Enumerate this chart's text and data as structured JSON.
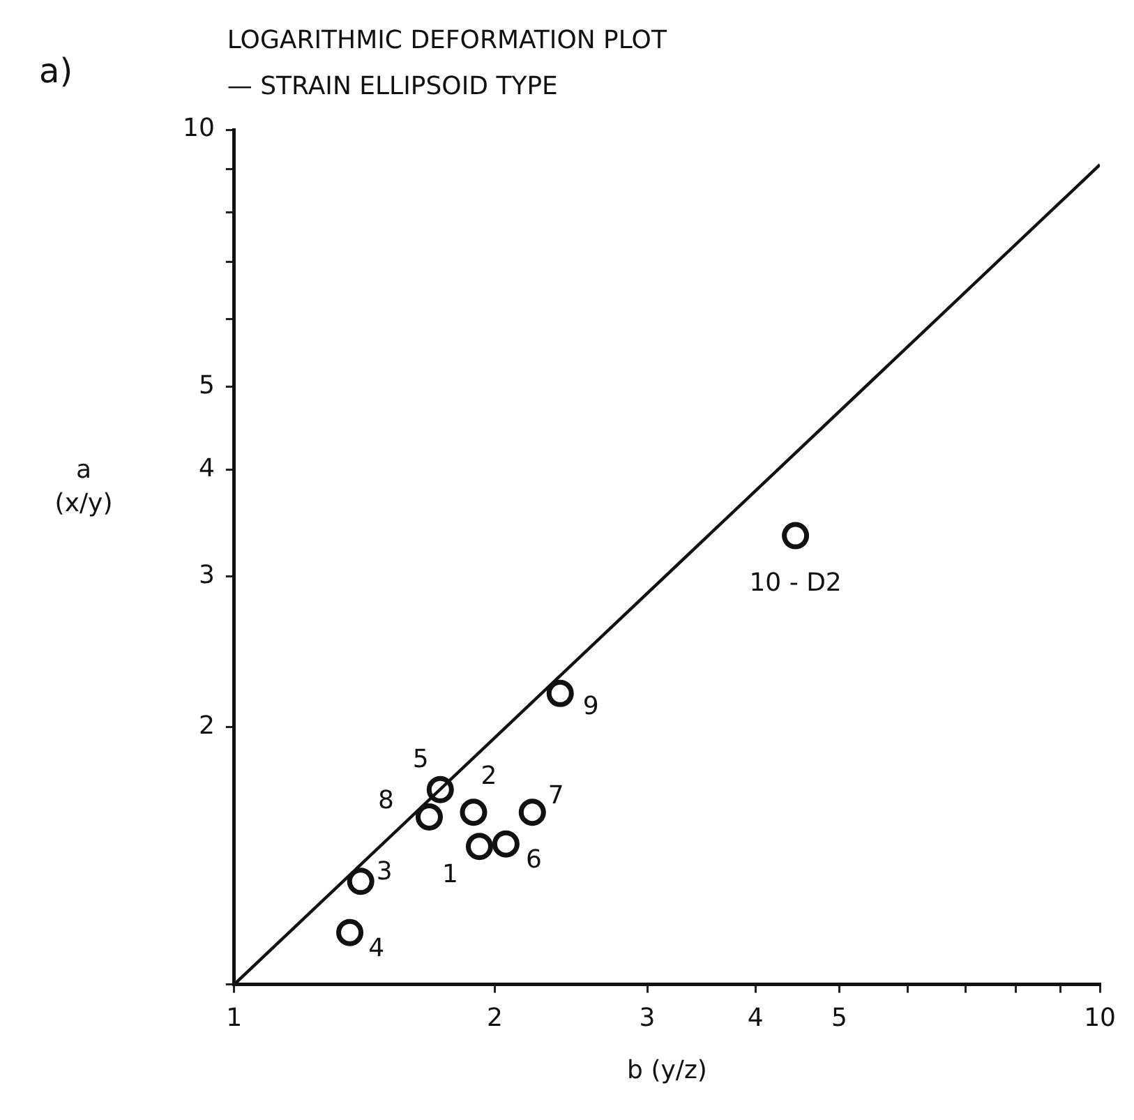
{
  "chart_data": {
    "type": "scatter",
    "title": "LOGARITHMIC DEFORMATION PLOT",
    "subtitle": "— STRAIN ELLIPSOID TYPE",
    "xlabel": "b (y/z)",
    "ylabel": "a (x/y)",
    "log": "xy",
    "grid": false,
    "legend": false,
    "xlim": [
      1,
      10
    ],
    "ylim": [
      1,
      10
    ],
    "xticks": [
      1,
      2,
      3,
      4,
      5,
      {
        "value": 6,
        "label": null
      },
      {
        "value": 7,
        "label": null
      },
      {
        "value": 8,
        "label": null
      },
      {
        "value": 9,
        "label": null
      },
      10
    ],
    "yticks": [
      {
        "value": 1,
        "label": null
      },
      2,
      3,
      4,
      5,
      {
        "value": 6,
        "label": null
      },
      {
        "value": 7,
        "label": null
      },
      {
        "value": 8,
        "label": null
      },
      {
        "value": 9,
        "label": null
      },
      10
    ],
    "series": [
      {
        "marker": "circle",
        "color": "#111111",
        "x": [
          1.92,
          1.89,
          1.4,
          1.36,
          1.73,
          2.06,
          2.21,
          1.68,
          2.38,
          4.45
        ],
        "values": [
          1.45,
          1.59,
          1.32,
          1.15,
          1.69,
          1.46,
          1.59,
          1.57,
          2.19,
          3.35
        ]
      },
      {
        "type": "line",
        "color": "#111111",
        "x": [
          1,
          10
        ],
        "values": [
          1,
          9.1
        ]
      }
    ],
    "annotations": [
      "a)",
      {
        "text": "1",
        "x": 1.92,
        "y": 1.45
      },
      {
        "text": "2",
        "x": 1.89,
        "y": 1.59
      },
      {
        "text": "3",
        "x": 1.4,
        "y": 1.32
      },
      {
        "text": "4",
        "x": 1.36,
        "y": 1.15
      },
      {
        "text": "5",
        "x": 1.73,
        "y": 1.69
      },
      {
        "text": "6",
        "x": 2.06,
        "y": 1.46
      },
      {
        "text": "7",
        "x": 2.21,
        "y": 1.59
      },
      {
        "text": "8",
        "x": 1.68,
        "y": 1.57
      },
      {
        "text": "9",
        "x": 2.38,
        "y": 2.19
      },
      {
        "text": "10 - D2",
        "x": 4.45,
        "y": 3.35
      }
    ]
  }
}
